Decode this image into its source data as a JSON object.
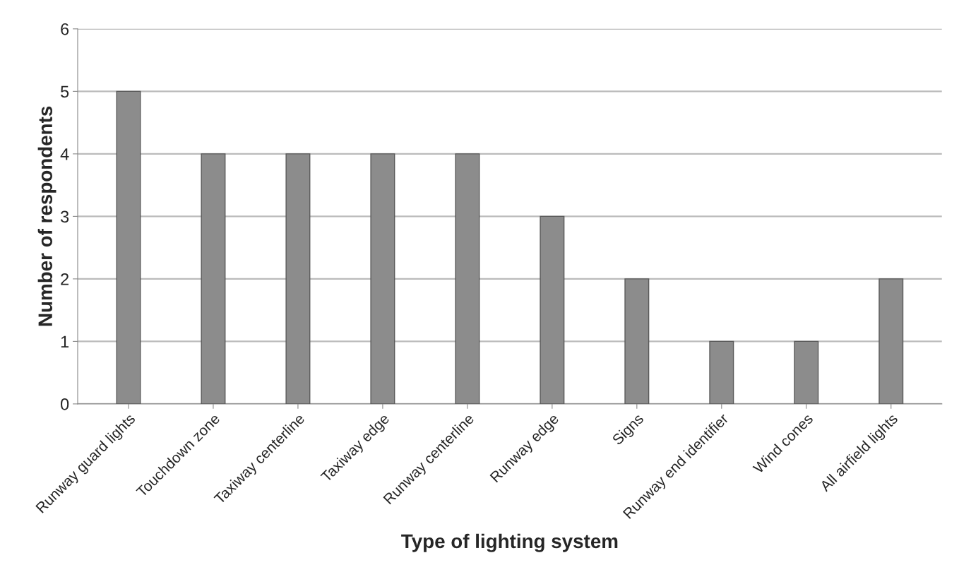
{
  "chart_data": {
    "type": "bar",
    "xlabel": "Type of lighting system",
    "ylabel": "Number of respondents",
    "categories": [
      "Runway guard lights",
      "Touchdown zone",
      "Taxiway centerline",
      "Taxiway edge",
      "Runway centerline",
      "Runway edge",
      "Signs",
      "Runway end identifier",
      "Wind cones",
      "All airfield lights"
    ],
    "values": [
      5,
      4,
      4,
      4,
      4,
      3,
      2,
      1,
      1,
      2
    ],
    "color": "#8c8c8c",
    "ylim": [
      0,
      6
    ],
    "yticks": [
      0,
      1,
      2,
      3,
      4,
      5,
      6
    ],
    "grid": "y"
  }
}
